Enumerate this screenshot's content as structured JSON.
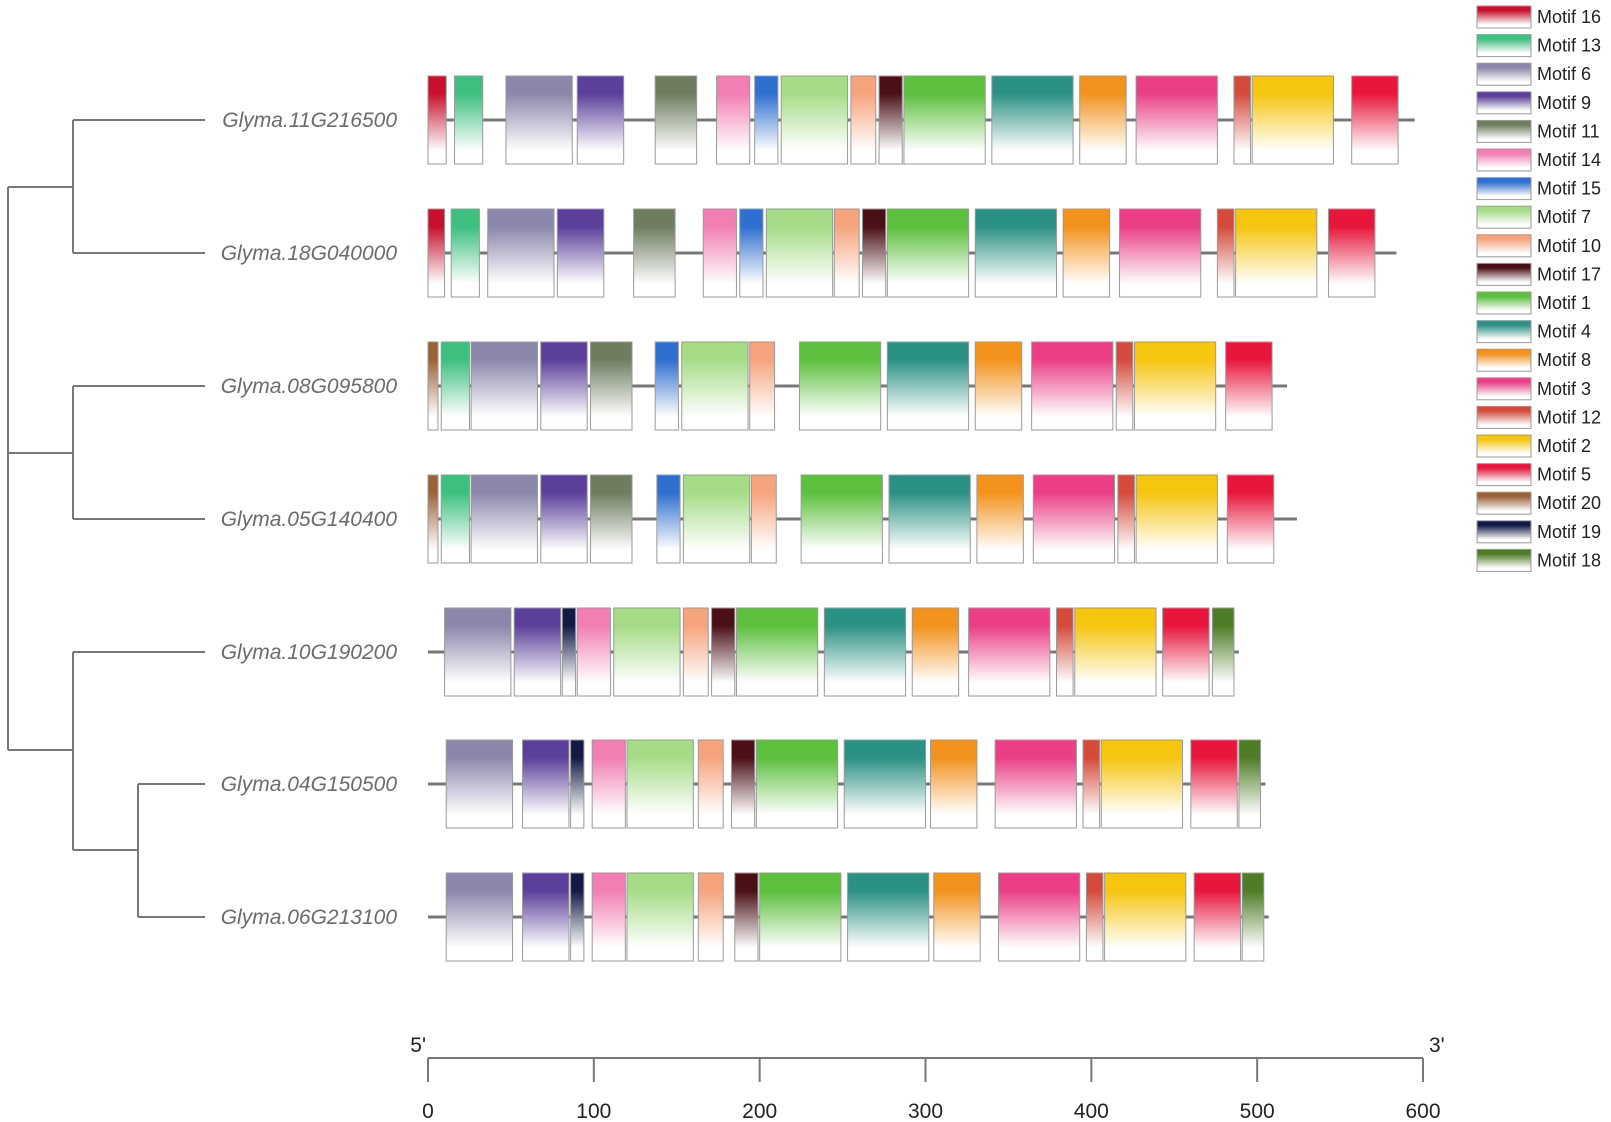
{
  "motifs": {
    "1": {
      "name": "Motif 1",
      "color": "#5cbf3d"
    },
    "2": {
      "name": "Motif 2",
      "color": "#f5c50f"
    },
    "3": {
      "name": "Motif 3",
      "color": "#ea3f86"
    },
    "4": {
      "name": "Motif 4",
      "color": "#2b9184"
    },
    "5": {
      "name": "Motif 5",
      "color": "#e8163d"
    },
    "6": {
      "name": "Motif 6",
      "color": "#8b87ab"
    },
    "7": {
      "name": "Motif 7",
      "color": "#a6dc88"
    },
    "8": {
      "name": "Motif 8",
      "color": "#f3921d"
    },
    "9": {
      "name": "Motif 9",
      "color": "#5c3f9a"
    },
    "10": {
      "name": "Motif 10",
      "color": "#f6a47e"
    },
    "11": {
      "name": "Motif 11",
      "color": "#6e7d60"
    },
    "12": {
      "name": "Motif 12",
      "color": "#d44a3b"
    },
    "13": {
      "name": "Motif 13",
      "color": "#3dbf7f"
    },
    "14": {
      "name": "Motif 14",
      "color": "#f27eb3"
    },
    "15": {
      "name": "Motif 15",
      "color": "#2f6fd0"
    },
    "16": {
      "name": "Motif 16",
      "color": "#c8102e"
    },
    "17": {
      "name": "Motif 17",
      "color": "#4a1016"
    },
    "18": {
      "name": "Motif 18",
      "color": "#4f7c26"
    },
    "19": {
      "name": "Motif 19",
      "color": "#121a45"
    },
    "20": {
      "name": "Motif 20",
      "color": "#9b6238"
    }
  },
  "legend_order": [
    "16",
    "13",
    "6",
    "9",
    "11",
    "14",
    "15",
    "7",
    "10",
    "17",
    "1",
    "4",
    "8",
    "3",
    "12",
    "2",
    "5",
    "20",
    "19",
    "18"
  ],
  "genes": [
    {
      "name": "Glyma.11G216500",
      "length": 595,
      "motifs": [
        [
          "16",
          0,
          11
        ],
        [
          "13",
          16,
          33
        ],
        [
          "6",
          47,
          87
        ],
        [
          "9",
          90,
          118
        ],
        [
          "11",
          137,
          162
        ],
        [
          "14",
          174,
          194
        ],
        [
          "15",
          197,
          211
        ],
        [
          "7",
          213,
          253
        ],
        [
          "10",
          255,
          270
        ],
        [
          "17",
          272,
          286
        ],
        [
          "1",
          287,
          336
        ],
        [
          "4",
          340,
          389
        ],
        [
          "8",
          393,
          421
        ],
        [
          "3",
          427,
          476
        ],
        [
          "12",
          486,
          496
        ],
        [
          "2",
          497,
          546
        ],
        [
          "5",
          557,
          585
        ]
      ]
    },
    {
      "name": "Glyma.18G040000",
      "length": 584,
      "motifs": [
        [
          "16",
          0,
          10
        ],
        [
          "13",
          14,
          31
        ],
        [
          "6",
          36,
          76
        ],
        [
          "9",
          78,
          106
        ],
        [
          "11",
          124,
          149
        ],
        [
          "14",
          166,
          186
        ],
        [
          "15",
          188,
          202
        ],
        [
          "7",
          204,
          244
        ],
        [
          "10",
          245,
          260
        ],
        [
          "17",
          262,
          276
        ],
        [
          "1",
          277,
          326
        ],
        [
          "4",
          330,
          379
        ],
        [
          "8",
          383,
          411
        ],
        [
          "3",
          417,
          466
        ],
        [
          "12",
          476,
          486
        ],
        [
          "2",
          487,
          536
        ],
        [
          "5",
          543,
          571
        ]
      ]
    },
    {
      "name": "Glyma.08G095800",
      "length": 518,
      "motifs": [
        [
          "20",
          0,
          6
        ],
        [
          "13",
          8,
          25
        ],
        [
          "6",
          26,
          66
        ],
        [
          "9",
          68,
          96
        ],
        [
          "11",
          98,
          123
        ],
        [
          "15",
          137,
          151
        ],
        [
          "7",
          153,
          193
        ],
        [
          "10",
          194,
          209
        ],
        [
          "1",
          224,
          273
        ],
        [
          "4",
          277,
          326
        ],
        [
          "8",
          330,
          358
        ],
        [
          "3",
          364,
          413
        ],
        [
          "12",
          415,
          425
        ],
        [
          "2",
          426,
          475
        ],
        [
          "5",
          481,
          509
        ]
      ]
    },
    {
      "name": "Glyma.05G140400",
      "length": 524,
      "motifs": [
        [
          "20",
          0,
          6
        ],
        [
          "13",
          8,
          25
        ],
        [
          "6",
          26,
          66
        ],
        [
          "9",
          68,
          96
        ],
        [
          "11",
          98,
          123
        ],
        [
          "15",
          138,
          152
        ],
        [
          "7",
          154,
          194
        ],
        [
          "10",
          195,
          210
        ],
        [
          "1",
          225,
          274
        ],
        [
          "4",
          278,
          327
        ],
        [
          "8",
          331,
          359
        ],
        [
          "3",
          365,
          414
        ],
        [
          "12",
          416,
          426
        ],
        [
          "2",
          427,
          476
        ],
        [
          "5",
          482,
          510
        ]
      ]
    },
    {
      "name": "Glyma.10G190200",
      "length": 489,
      "motifs": [
        [
          "6",
          10,
          50
        ],
        [
          "9",
          52,
          80
        ],
        [
          "19",
          81,
          89
        ],
        [
          "14",
          90,
          110
        ],
        [
          "7",
          112,
          152
        ],
        [
          "10",
          154,
          169
        ],
        [
          "17",
          171,
          185
        ],
        [
          "1",
          186,
          235
        ],
        [
          "4",
          239,
          288
        ],
        [
          "8",
          292,
          320
        ],
        [
          "3",
          326,
          375
        ],
        [
          "12",
          379,
          389
        ],
        [
          "2",
          390,
          439
        ],
        [
          "5",
          443,
          471
        ],
        [
          "18",
          473,
          486
        ]
      ]
    },
    {
      "name": "Glyma.04G150500",
      "length": 505,
      "motifs": [
        [
          "6",
          11,
          51
        ],
        [
          "9",
          57,
          85
        ],
        [
          "19",
          86,
          94
        ],
        [
          "14",
          99,
          119
        ],
        [
          "7",
          120,
          160
        ],
        [
          "10",
          163,
          178
        ],
        [
          "17",
          183,
          197
        ],
        [
          "1",
          198,
          247
        ],
        [
          "4",
          251,
          300
        ],
        [
          "8",
          303,
          331
        ],
        [
          "3",
          342,
          391
        ],
        [
          "12",
          395,
          405
        ],
        [
          "2",
          406,
          455
        ],
        [
          "5",
          460,
          488
        ],
        [
          "18",
          489,
          502
        ]
      ]
    },
    {
      "name": "Glyma.06G213100",
      "length": 507,
      "motifs": [
        [
          "6",
          11,
          51
        ],
        [
          "9",
          57,
          85
        ],
        [
          "19",
          86,
          94
        ],
        [
          "14",
          99,
          119
        ],
        [
          "7",
          120,
          160
        ],
        [
          "10",
          163,
          178
        ],
        [
          "17",
          185,
          199
        ],
        [
          "1",
          200,
          249
        ],
        [
          "4",
          253,
          302
        ],
        [
          "8",
          305,
          333
        ],
        [
          "3",
          344,
          393
        ],
        [
          "12",
          397,
          407
        ],
        [
          "2",
          408,
          457
        ],
        [
          "5",
          462,
          490
        ],
        [
          "18",
          491,
          504
        ]
      ]
    }
  ],
  "axis": {
    "start_label": "5'",
    "end_label": "3'",
    "min": 0,
    "max": 600,
    "ticks": [
      "0",
      "100",
      "200",
      "300",
      "400",
      "500",
      "600"
    ]
  }
}
